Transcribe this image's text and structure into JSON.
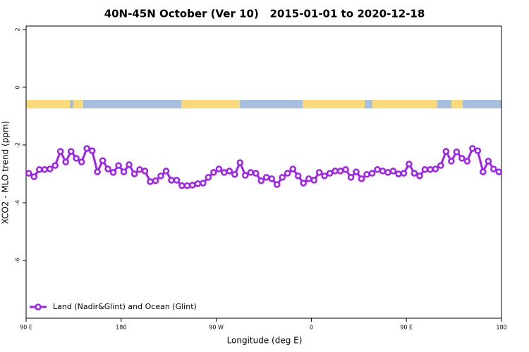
{
  "chart_data": {
    "type": "line",
    "title": "40N-45N October (Ver 10)   2015-01-01 to 2020-12-18",
    "xlabel": "Longitude (deg E)",
    "ylabel": "XCO2 - MLO trend (ppm)",
    "xlim": [
      90,
      540
    ],
    "ylim": [
      -8,
      2.12
    ],
    "xticks": [
      {
        "value": 90,
        "label": "90 E"
      },
      {
        "value": 180,
        "label": "180"
      },
      {
        "value": 270,
        "label": "90 W"
      },
      {
        "value": 360,
        "label": "0"
      },
      {
        "value": 450,
        "label": "90 E"
      },
      {
        "value": 540,
        "label": "180"
      }
    ],
    "yticks": [
      2,
      0,
      -2,
      -4,
      -6
    ],
    "legend": "bottomleft",
    "x": [
      92.5,
      97.5,
      102.5,
      107.5,
      112.5,
      117.5,
      122.5,
      127.5,
      132.5,
      137.5,
      142.5,
      147.5,
      152.5,
      157.5,
      162.5,
      167.5,
      172.5,
      177.5,
      182.5,
      187.5,
      192.5,
      197.5,
      202.5,
      207.5,
      212.5,
      217.5,
      222.5,
      227.5,
      232.5,
      237.5,
      242.5,
      247.5,
      252.5,
      257.5,
      262.5,
      267.5,
      272.5,
      277.5,
      282.5,
      287.5,
      292.5,
      297.5,
      302.5,
      307.5,
      312.5,
      317.5,
      322.5,
      327.5,
      332.5,
      337.5,
      342.5,
      347.5,
      352.5,
      357.5,
      362.5,
      367.5,
      372.5,
      377.5,
      382.5,
      387.5,
      392.5,
      397.5,
      402.5,
      407.5,
      412.5,
      417.5,
      422.5,
      427.5,
      432.5,
      437.5,
      442.5,
      447.5,
      452.5,
      457.5,
      462.5,
      467.5,
      472.5,
      477.5,
      482.5,
      487.5,
      492.5,
      497.5,
      502.5,
      507.5,
      512.5,
      517.5,
      522.5,
      527.5,
      532.5,
      537.5
    ],
    "series": [
      {
        "name": "Land (Nadir&Glint) and Ocean (Glint)",
        "color": "#a020f0",
        "values": [
          -2.98,
          -3.1,
          -2.85,
          -2.85,
          -2.83,
          -2.71,
          -2.22,
          -2.59,
          -2.22,
          -2.46,
          -2.59,
          -2.12,
          -2.2,
          -2.93,
          -2.54,
          -2.83,
          -2.95,
          -2.71,
          -2.93,
          -2.68,
          -3.0,
          -2.85,
          -2.9,
          -3.27,
          -3.24,
          -3.07,
          -2.9,
          -3.22,
          -3.22,
          -3.41,
          -3.41,
          -3.39,
          -3.34,
          -3.32,
          -3.12,
          -2.95,
          -2.83,
          -2.95,
          -2.9,
          -3.02,
          -2.61,
          -3.05,
          -2.95,
          -2.98,
          -3.24,
          -3.12,
          -3.17,
          -3.37,
          -3.12,
          -2.98,
          -2.83,
          -3.07,
          -3.32,
          -3.17,
          -3.22,
          -2.95,
          -3.07,
          -2.98,
          -2.9,
          -2.9,
          -2.85,
          -3.12,
          -2.93,
          -3.17,
          -3.02,
          -2.98,
          -2.85,
          -2.9,
          -2.95,
          -2.9,
          -3.0,
          -2.98,
          -2.66,
          -2.98,
          -3.07,
          -2.85,
          -2.85,
          -2.83,
          -2.71,
          -2.22,
          -2.56,
          -2.24,
          -2.46,
          -2.56,
          -2.12,
          -2.2,
          -2.93,
          -2.56,
          -2.83,
          -2.93
        ]
      }
    ]
  }
}
